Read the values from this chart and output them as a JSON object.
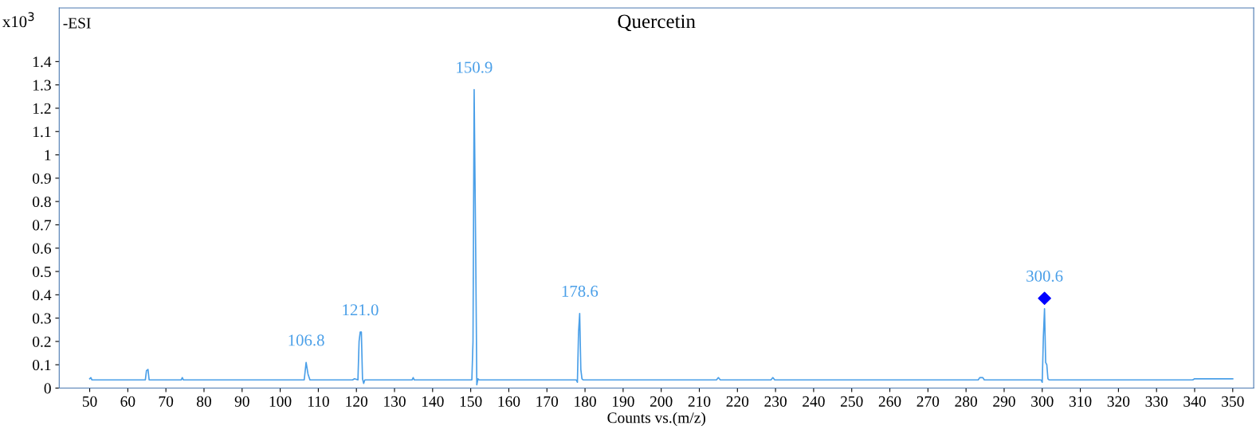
{
  "chart_data": {
    "type": "line",
    "title": "Quercetin",
    "xlabel": "Counts vs.(m/z)",
    "ylabel": "x10$^{3}$",
    "xlim": [
      42,
      355.5
    ],
    "ylim": [
      0,
      1.63
    ],
    "xticks": [
      50,
      60,
      70,
      80,
      90,
      100,
      110,
      120,
      130,
      140,
      150,
      160,
      170,
      180,
      190,
      200,
      210,
      220,
      230,
      240,
      250,
      260,
      270,
      280,
      290,
      300,
      310,
      320,
      330,
      340,
      350
    ],
    "yticks": [
      0,
      0.1,
      0.2,
      0.3,
      0.4,
      0.5,
      0.6,
      0.7,
      0.8,
      0.9,
      1,
      1.1,
      1.2,
      1.3,
      1.4
    ],
    "grid": false,
    "marker": "none",
    "line_style": "solid",
    "series": [
      {
        "color": "#4a9fe8",
        "x": [
          50,
          50.3,
          50.6,
          64.6,
          64.9,
          65.3,
          65.6,
          74,
          74.3,
          74.6,
          106.3,
          106.8,
          107.3,
          107.8,
          119,
          119.5,
          120.4,
          120.7,
          121.0,
          121.3,
          121.6,
          121.9,
          122.2,
          134.6,
          134.9,
          135.2,
          150.3,
          150.6,
          150.9,
          151.3,
          151.6,
          151.9,
          152.2,
          177.7,
          178.0,
          178.3,
          178.6,
          178.9,
          179.2,
          179.5,
          214.5,
          215,
          215.5,
          228.8,
          229.3,
          229.8,
          283.2,
          283.6,
          284.4,
          284.8,
          299.7,
          300.0,
          300.3,
          300.6,
          300.9,
          301.2,
          301.5,
          301.8,
          302.1,
          339.5,
          340,
          350
        ],
        "values": [
          0.04,
          0.045,
          0.035,
          0.035,
          0.075,
          0.08,
          0.035,
          0.035,
          0.045,
          0.035,
          0.035,
          0.11,
          0.06,
          0.035,
          0.035,
          0.04,
          0.035,
          0.2,
          0.24,
          0.24,
          0.04,
          0.02,
          0.035,
          0.035,
          0.045,
          0.035,
          0.035,
          0.2,
          1.28,
          0.6,
          0.014,
          0.04,
          0.035,
          0.035,
          0.025,
          0.24,
          0.32,
          0.08,
          0.04,
          0.035,
          0.035,
          0.045,
          0.035,
          0.035,
          0.045,
          0.035,
          0.035,
          0.045,
          0.045,
          0.035,
          0.035,
          0.025,
          0.22,
          0.34,
          0.11,
          0.1,
          0.04,
          0.035,
          0.035,
          0.035,
          0.04,
          0.04
        ]
      },
      {
        "type": "scatter",
        "marker": "diamond",
        "color": "#0000ff",
        "x": [
          300.6
        ],
        "values": [
          0.385
        ]
      }
    ],
    "annotations": [
      {
        "text": "106.8",
        "x": 106.8,
        "y": 0.11
      },
      {
        "text": "121.0",
        "x": 121.0,
        "y": 0.24
      },
      {
        "text": "150.9",
        "x": 150.9,
        "y": 1.28
      },
      {
        "text": "178.6",
        "x": 178.6,
        "y": 0.32
      },
      {
        "text": "300.6",
        "x": 300.6,
        "y": 0.385
      },
      "-ESI"
    ]
  }
}
